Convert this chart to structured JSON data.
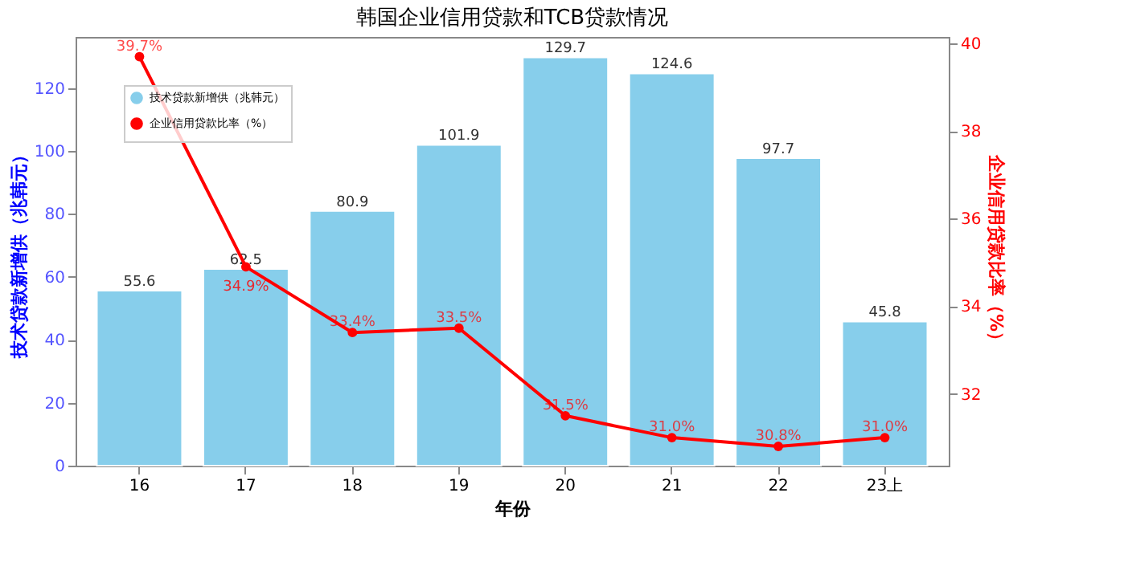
{
  "chart_data": {
    "type": "bar",
    "title": "韩国企业信用贷款和TCB贷款情况",
    "xlabel": "年份",
    "ylabel": "技术贷款新增供（兆韩元）",
    "y2label": "企业信用贷款比率（%）",
    "categories": [
      "16",
      "17",
      "18",
      "19",
      "20",
      "21",
      "22",
      "23上"
    ],
    "series": [
      {
        "name": "技术贷款新增供（兆韩元）",
        "color": "#87ceeb",
        "values": [
          55.6,
          62.5,
          80.9,
          101.9,
          129.7,
          124.6,
          97.7,
          45.8
        ]
      },
      {
        "name": "企业信用贷款比率（%）",
        "type": "line",
        "axis": "y2",
        "color": "#ff0000",
        "marker": "circle",
        "values": [
          39.7,
          34.9,
          33.4,
          33.5,
          31.5,
          31.0,
          30.8,
          31.0
        ],
        "value_labels": [
          "39.7%",
          "34.9%",
          "33.4%",
          "33.5%",
          "31.5%",
          "31.0%",
          "30.8%",
          "31.0%"
        ]
      }
    ],
    "ylim": [
      0,
      136.2
    ],
    "yticks": [
      0,
      20,
      40,
      60,
      80,
      100,
      120
    ],
    "y2lim": [
      30.36,
      40.15
    ],
    "y2ticks": [
      32,
      34,
      36,
      38,
      40
    ],
    "data_labels": true,
    "legend": "top left",
    "grid": false
  }
}
